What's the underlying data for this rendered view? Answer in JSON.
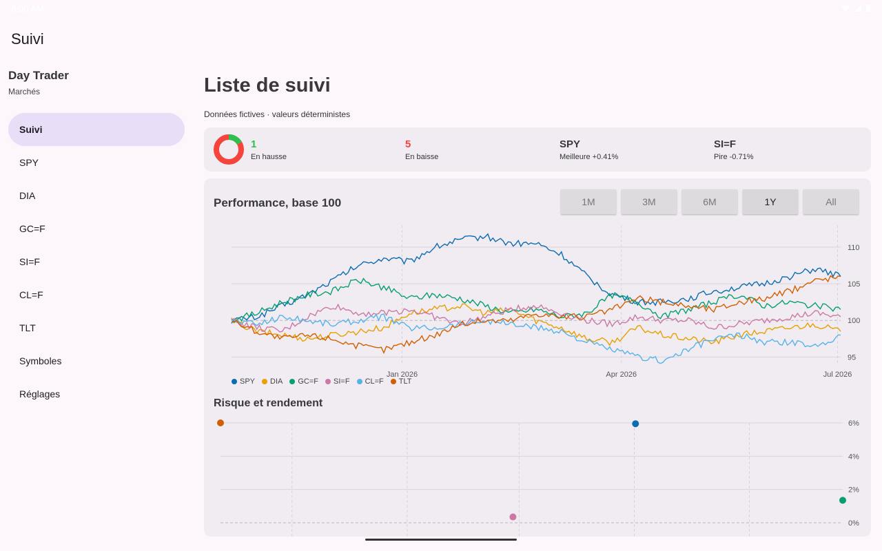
{
  "status": {
    "time": "8:00 AM"
  },
  "app": {
    "title": "Suivi"
  },
  "sidebar": {
    "title": "Day Trader",
    "subtitle": "Marchés",
    "items": [
      {
        "label": "Suivi"
      },
      {
        "label": "SPY"
      },
      {
        "label": "DIA"
      },
      {
        "label": "GC=F"
      },
      {
        "label": "SI=F"
      },
      {
        "label": "CL=F"
      },
      {
        "label": "TLT"
      },
      {
        "label": "Symboles"
      },
      {
        "label": "Réglages"
      }
    ]
  },
  "main": {
    "title": "Liste de suivi",
    "subtitle": "Données fictives · valeurs déterministes"
  },
  "summary": {
    "up_value": "1",
    "up_label": "En hausse",
    "down_value": "5",
    "down_label": "En baisse",
    "best_value": "SPY",
    "best_label": "Meilleure +0.41%",
    "worst_value": "SI=F",
    "worst_label": "Pire -0.71%",
    "up_color": "#2fbf4f",
    "down_color": "#f4443b"
  },
  "performance": {
    "title": "Performance, base 100",
    "ranges": [
      "1M",
      "3M",
      "6M",
      "1Y",
      "All"
    ],
    "active_range": "1Y"
  },
  "risk": {
    "title": "Risque et rendement"
  },
  "chart_data": [
    {
      "type": "line",
      "title": "Performance, base 100",
      "x_ticks": [
        "Jan 2026",
        "Apr 2026",
        "Jul 2026"
      ],
      "y_ticks": [
        95,
        100,
        105,
        110
      ],
      "ylim": [
        94,
        113
      ],
      "grid": true,
      "legend": "bottom-left",
      "series": [
        {
          "name": "SPY",
          "color": "#0b6cb0",
          "values": [
            100,
            100.5,
            102,
            103.5,
            105.5,
            107.5,
            108.5,
            108,
            110,
            111,
            111.5,
            110.5,
            110.5,
            109,
            106,
            103.5,
            102.5,
            102.5,
            103,
            104,
            104.5,
            105,
            106,
            107,
            106
          ]
        },
        {
          "name": "DIA",
          "color": "#e6a000",
          "values": [
            100,
            98.5,
            98,
            97.5,
            98,
            98.5,
            99,
            101,
            101.5,
            102,
            101,
            101.5,
            100,
            99,
            97.5,
            97,
            99,
            98,
            97.5,
            97,
            98,
            98.5,
            99,
            99.5,
            98.5
          ]
        },
        {
          "name": "GC=F",
          "color": "#079f6f",
          "values": [
            100,
            101,
            102.5,
            103.5,
            104,
            105.5,
            104.5,
            103,
            103.5,
            103,
            102,
            101,
            101.5,
            100.5,
            101,
            103.5,
            102.5,
            100.5,
            101.5,
            102.5,
            103.5,
            102,
            102.5,
            102,
            101.5
          ]
        },
        {
          "name": "SI=F",
          "color": "#cc78a6",
          "values": [
            100,
            99,
            98.5,
            100.5,
            102,
            101,
            101,
            101.5,
            100.5,
            99.5,
            100.5,
            101.5,
            102,
            101,
            100,
            99.5,
            100.5,
            100,
            100,
            99,
            99.5,
            100,
            100.5,
            101,
            100.5
          ]
        },
        {
          "name": "CL=F",
          "color": "#56b3e8",
          "values": [
            100,
            99.5,
            100.5,
            100,
            99.5,
            100,
            100.5,
            99,
            99,
            99.5,
            100,
            99.5,
            99,
            98.5,
            97,
            96,
            95,
            94.5,
            96,
            97.5,
            98,
            97,
            97,
            96.5,
            98
          ]
        },
        {
          "name": "TLT",
          "color": "#d15f00",
          "values": [
            100,
            98.5,
            97.5,
            98,
            97.5,
            96.5,
            96,
            97,
            98,
            99.5,
            100,
            100,
            101,
            100.5,
            100.5,
            101.5,
            103,
            102.5,
            102,
            101.5,
            102.5,
            103,
            104,
            105.5,
            106
          ]
        }
      ]
    },
    {
      "type": "scatter",
      "title": "Risque et rendement",
      "y_ticks": [
        "0%",
        "2%",
        "4%",
        "6%"
      ],
      "ylim": [
        0,
        6
      ],
      "grid": true,
      "points": [
        {
          "series": "TLT",
          "color": "#d15f00",
          "x": 0.0,
          "y": 6.0
        },
        {
          "series": "SPY",
          "color": "#0b6cb0",
          "x": 0.667,
          "y": 5.95
        },
        {
          "series": "SI=F",
          "color": "#cc78a6",
          "x": 0.47,
          "y": 0.35
        },
        {
          "series": "GC=F",
          "color": "#079f6f",
          "x": 1.0,
          "y": 1.35
        }
      ]
    }
  ]
}
